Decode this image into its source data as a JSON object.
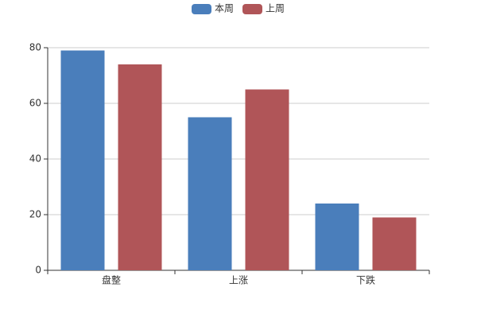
{
  "chart_data": {
    "type": "bar",
    "categories": [
      "盘整",
      "上涨",
      "下跌"
    ],
    "series": [
      {
        "name": "本周",
        "color": "#4a7ebb",
        "values": [
          79,
          55,
          24
        ]
      },
      {
        "name": "上周",
        "color": "#b05558",
        "values": [
          74,
          65,
          19
        ]
      }
    ],
    "ylim": [
      0,
      80
    ],
    "yticks": [
      0,
      20,
      40,
      60,
      80
    ],
    "grid": true,
    "legend": "top"
  }
}
